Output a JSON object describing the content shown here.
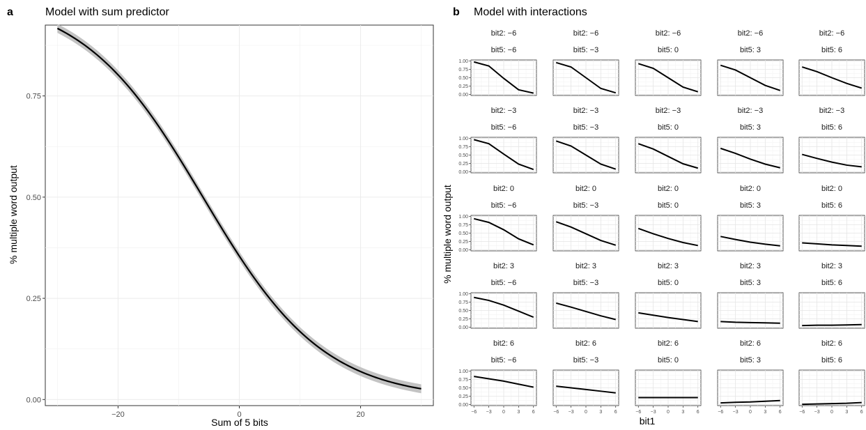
{
  "chart_data": [
    {
      "panel_letter": "a",
      "type": "line",
      "title": "Model with sum predictor",
      "xlabel": "Sum of 5 bits",
      "ylabel": "% multiple word output",
      "xlim": [
        -32,
        32
      ],
      "ylim": [
        -0.015,
        0.925
      ],
      "xticks": [
        -20,
        0,
        20
      ],
      "yticks": [
        0.0,
        0.25,
        0.5,
        0.75
      ],
      "ytick_labels": [
        "0.00",
        "0.25",
        "0.50",
        "0.75"
      ],
      "grid": true,
      "confidence_band": true,
      "curve": {
        "intercept": -0.6,
        "slope": -0.1
      }
    },
    {
      "panel_letter": "b",
      "type": "line",
      "title": "Model with interactions",
      "xlabel": "bit1",
      "ylabel": "% multiple word output",
      "x": [
        -6,
        -3,
        0,
        3,
        6
      ],
      "xlim": [
        -6.6,
        6.6
      ],
      "ylim": [
        -0.03,
        1.03
      ],
      "xticks": [
        -6,
        -3,
        0,
        3,
        6
      ],
      "xtick_labels": [
        "−6",
        "−3",
        "0",
        "3",
        "6"
      ],
      "yticks": [
        0.0,
        0.25,
        0.5,
        0.75,
        1.0
      ],
      "ytick_labels": [
        "0.00",
        "0.25",
        "0.50",
        "0.75",
        "1.00"
      ],
      "facet_rows": [
        "bit2: −6",
        "bit2: −3",
        "bit2: 0",
        "bit2: 3",
        "bit2: 6"
      ],
      "facet_cols": [
        "bit5: −6",
        "bit5: −3",
        "bit5: 0",
        "bit5: 3",
        "bit5: 6"
      ],
      "values": [
        [
          [
            0.97,
            0.85,
            0.48,
            0.14,
            0.04
          ],
          [
            0.95,
            0.82,
            0.5,
            0.18,
            0.05
          ],
          [
            0.92,
            0.78,
            0.5,
            0.22,
            0.08
          ],
          [
            0.87,
            0.73,
            0.5,
            0.27,
            0.12
          ],
          [
            0.82,
            0.68,
            0.5,
            0.33,
            0.19
          ]
        ],
        [
          [
            0.96,
            0.84,
            0.53,
            0.23,
            0.07
          ],
          [
            0.92,
            0.77,
            0.5,
            0.23,
            0.08
          ],
          [
            0.84,
            0.68,
            0.46,
            0.24,
            0.11
          ],
          [
            0.7,
            0.55,
            0.38,
            0.23,
            0.12
          ],
          [
            0.52,
            0.4,
            0.29,
            0.2,
            0.15
          ]
        ],
        [
          [
            0.93,
            0.82,
            0.6,
            0.33,
            0.15
          ],
          [
            0.84,
            0.68,
            0.48,
            0.28,
            0.14
          ],
          [
            0.64,
            0.48,
            0.34,
            0.22,
            0.13
          ],
          [
            0.4,
            0.31,
            0.23,
            0.17,
            0.12
          ],
          [
            0.21,
            0.18,
            0.15,
            0.13,
            0.11
          ]
        ],
        [
          [
            0.89,
            0.8,
            0.66,
            0.48,
            0.3
          ],
          [
            0.72,
            0.6,
            0.47,
            0.34,
            0.23
          ],
          [
            0.43,
            0.36,
            0.29,
            0.23,
            0.17
          ],
          [
            0.17,
            0.15,
            0.14,
            0.13,
            0.12
          ],
          [
            0.05,
            0.06,
            0.06,
            0.07,
            0.08
          ]
        ],
        [
          [
            0.84,
            0.77,
            0.7,
            0.61,
            0.52
          ],
          [
            0.55,
            0.5,
            0.45,
            0.4,
            0.35
          ],
          [
            0.21,
            0.21,
            0.21,
            0.21,
            0.21
          ],
          [
            0.05,
            0.07,
            0.08,
            0.1,
            0.12
          ],
          [
            0.01,
            0.02,
            0.03,
            0.04,
            0.06
          ]
        ]
      ]
    }
  ]
}
